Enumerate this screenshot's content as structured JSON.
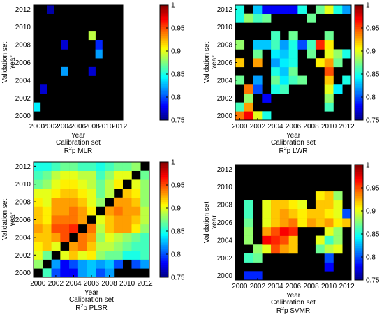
{
  "chart_data": [
    {
      "type": "heatmap",
      "subtitle": "MLR",
      "caption_prefix": "R",
      "caption_sup": "2",
      "caption_sub": "p",
      "xlabel": "Year",
      "xlabel2": "Calibration set",
      "ylabel": "Validation set",
      "ylabel2": "Year",
      "x_years": [
        2000,
        2001,
        2002,
        2003,
        2004,
        2005,
        2006,
        2007,
        2008,
        2009,
        2010,
        2011,
        2012
      ],
      "y_years": [
        2000,
        2001,
        2002,
        2003,
        2004,
        2005,
        2006,
        2007,
        2008,
        2009,
        2010,
        2011,
        2012
      ],
      "x_ticks": [
        "2000",
        "2002",
        "2004",
        "2006",
        "2008",
        "2010",
        "2012"
      ],
      "y_ticks": [
        "2000",
        "2002",
        "2004",
        "2006",
        "2008",
        "2010",
        "2012"
      ],
      "colorbar_ticks": [
        "0.75",
        "0.8",
        "0.85",
        "0.9",
        "0.95",
        "1"
      ],
      "clim": [
        0.75,
        1
      ],
      "values": [
        [
          0,
          0,
          0,
          0,
          0,
          0,
          0,
          0,
          0,
          0,
          0,
          0,
          0
        ],
        [
          0.84,
          0,
          0,
          0,
          0,
          0,
          0,
          0,
          0,
          0,
          0,
          0,
          0
        ],
        [
          0,
          0,
          0,
          0,
          0,
          0,
          0,
          0,
          0,
          0,
          0,
          0,
          0
        ],
        [
          0,
          0.77,
          0,
          0,
          0,
          0,
          0,
          0,
          0,
          0,
          0,
          0,
          0
        ],
        [
          0,
          0,
          0,
          0,
          0,
          0,
          0,
          0,
          0,
          0,
          0,
          0,
          0
        ],
        [
          0,
          0,
          0,
          0,
          0.82,
          0,
          0,
          0,
          0.77,
          0,
          0,
          0,
          0
        ],
        [
          0,
          0,
          0,
          0,
          0,
          0,
          0,
          0,
          0,
          0,
          0,
          0,
          0
        ],
        [
          0,
          0,
          0,
          0,
          0,
          0,
          0,
          0,
          0,
          0.82,
          0,
          0,
          0
        ],
        [
          0,
          0,
          0,
          0,
          0.77,
          0,
          0,
          0,
          0,
          0.79,
          0,
          0,
          0
        ],
        [
          0,
          0,
          0,
          0,
          0,
          0,
          0,
          0,
          0.89,
          0,
          0,
          0,
          0
        ],
        [
          0,
          0,
          0,
          0,
          0,
          0,
          0,
          0,
          0,
          0,
          0,
          0,
          0
        ],
        [
          0,
          0,
          0,
          0,
          0,
          0,
          0,
          0,
          0,
          0,
          0,
          0,
          0
        ],
        [
          0,
          0,
          0.76,
          0,
          0,
          0,
          0,
          0,
          0,
          0,
          0,
          0,
          0
        ]
      ]
    },
    {
      "type": "heatmap",
      "subtitle": "LWR",
      "caption_prefix": "R",
      "caption_sup": "2",
      "caption_sub": "p",
      "xlabel": "Year",
      "xlabel2": "Calibration set",
      "ylabel": "Validation set",
      "ylabel2": "Year",
      "x_years": [
        2000,
        2001,
        2002,
        2003,
        2004,
        2005,
        2006,
        2007,
        2008,
        2009,
        2010,
        2011,
        2012
      ],
      "y_years": [
        2000,
        2001,
        2002,
        2003,
        2004,
        2005,
        2006,
        2007,
        2008,
        2009,
        2010,
        2011,
        2012
      ],
      "x_ticks": [
        "2000",
        "2002",
        "2004",
        "2006",
        "2008",
        "2010",
        "2012"
      ],
      "y_ticks": [
        "2000",
        "2002",
        "2004",
        "2006",
        "2008",
        "2010",
        "2012"
      ],
      "colorbar_ticks": [
        "0.75",
        "0.8",
        "0.85",
        "0.9",
        "0.95",
        "1"
      ],
      "clim": [
        0.75,
        1
      ],
      "values": [
        [
          0.94,
          0.97,
          0.9,
          0.85,
          0,
          0,
          0,
          0,
          0,
          0,
          0,
          0,
          0
        ],
        [
          0.86,
          0.93,
          0,
          0,
          0,
          0,
          0,
          0,
          0,
          0,
          0.86,
          0,
          0
        ],
        [
          0,
          0.88,
          0,
          0.78,
          0,
          0,
          0,
          0,
          0,
          0,
          0.88,
          0,
          0
        ],
        [
          0,
          0.94,
          0.8,
          0,
          0.85,
          0.86,
          0,
          0,
          0,
          0,
          0.9,
          0.84,
          0
        ],
        [
          0.87,
          0,
          0.82,
          0,
          0.87,
          0.84,
          0.86,
          0.87,
          0,
          0,
          0.92,
          0,
          0.85
        ],
        [
          0,
          0,
          0,
          0,
          0.85,
          0.83,
          0.87,
          0,
          0,
          0,
          0.95,
          0,
          0
        ],
        [
          0.92,
          0,
          0.93,
          0,
          0.82,
          0.84,
          0.85,
          0,
          0,
          0.91,
          0.93,
          0.87,
          0
        ],
        [
          0,
          0,
          0.87,
          0,
          0.84,
          0.83,
          0.85,
          0,
          0.87,
          0,
          0.9,
          0.88,
          0.85
        ],
        [
          0.88,
          0,
          0.83,
          0.83,
          0.86,
          0.82,
          0.85,
          0.8,
          0.86,
          0.96,
          0.91,
          0,
          0
        ],
        [
          0,
          0,
          0,
          0,
          0.86,
          0,
          0.87,
          0,
          0,
          0,
          0.87,
          0,
          0
        ],
        [
          0,
          0,
          0,
          0,
          0,
          0,
          0,
          0,
          0,
          0,
          0,
          0,
          0
        ],
        [
          0.85,
          0.88,
          0.86,
          0.87,
          0,
          0,
          0,
          0,
          0.87,
          0,
          0,
          0,
          0
        ],
        [
          0.85,
          0,
          0.83,
          0.78,
          0.78,
          0.78,
          0.78,
          0.85,
          0,
          0.87,
          0.9,
          0.85,
          0.82
        ]
      ]
    },
    {
      "type": "heatmap",
      "subtitle": "PLSR",
      "caption_prefix": "R",
      "caption_sup": "2",
      "caption_sub": "p",
      "xlabel": "Year",
      "xlabel2": "Calibration set",
      "ylabel": "Validation set",
      "ylabel2": "Year",
      "x_years": [
        2000,
        2001,
        2002,
        2003,
        2004,
        2005,
        2006,
        2007,
        2008,
        2009,
        2010,
        2011,
        2012
      ],
      "y_years": [
        2000,
        2001,
        2002,
        2003,
        2004,
        2005,
        2006,
        2007,
        2008,
        2009,
        2010,
        2011,
        2012
      ],
      "x_ticks": [
        "2000",
        "2002",
        "2004",
        "2006",
        "2008",
        "2010",
        "2012"
      ],
      "y_ticks": [
        "2000",
        "2002",
        "2004",
        "2006",
        "2008",
        "2010",
        "2012"
      ],
      "colorbar_ticks": [
        "0.75",
        "0.8",
        "0.85",
        "0.9",
        "0.95",
        "1"
      ],
      "clim": [
        0.75,
        1
      ],
      "values": [
        [
          0,
          0.86,
          0.8,
          0.78,
          0.78,
          0.82,
          0.83,
          0.8,
          0.82,
          0,
          0,
          0,
          0
        ],
        [
          0.88,
          0,
          0.82,
          0.78,
          0.8,
          0.82,
          0.83,
          0.82,
          0.83,
          0.8,
          0,
          0.8,
          0.82
        ],
        [
          0.9,
          0.87,
          0,
          0.9,
          0.92,
          0.9,
          0.91,
          0.88,
          0.87,
          0.87,
          0.85,
          0.85,
          0.86
        ],
        [
          0.91,
          0.92,
          0.9,
          0,
          0.93,
          0.94,
          0.92,
          0.89,
          0.89,
          0.88,
          0.87,
          0.86,
          0.86
        ],
        [
          0.92,
          0.92,
          0.93,
          0.95,
          0,
          0.94,
          0.93,
          0.88,
          0.9,
          0.89,
          0.88,
          0.87,
          0.86
        ],
        [
          0.93,
          0.92,
          0.95,
          0.95,
          0.96,
          0,
          0.94,
          0.89,
          0.92,
          0.93,
          0.93,
          0.91,
          0.88
        ],
        [
          0.92,
          0.91,
          0.94,
          0.94,
          0.94,
          0.93,
          0,
          0.9,
          0.92,
          0.93,
          0.93,
          0.92,
          0.89
        ],
        [
          0.92,
          0.91,
          0.93,
          0.93,
          0.94,
          0.93,
          0.91,
          0,
          0.93,
          0.94,
          0.93,
          0.93,
          0.89
        ],
        [
          0.91,
          0.9,
          0.93,
          0.93,
          0.93,
          0.92,
          0.9,
          0.88,
          0,
          0.93,
          0.93,
          0.92,
          0.88
        ],
        [
          0.9,
          0.9,
          0.91,
          0.92,
          0.92,
          0.91,
          0.9,
          0.87,
          0.89,
          0,
          0.92,
          0.91,
          0.88
        ],
        [
          0.87,
          0.88,
          0.9,
          0.91,
          0.91,
          0.9,
          0.89,
          0.87,
          0.89,
          0.91,
          0,
          0.9,
          0.88
        ],
        [
          0.86,
          0.87,
          0.89,
          0.9,
          0.9,
          0.89,
          0.89,
          0.86,
          0.88,
          0.9,
          0.9,
          0,
          0.87
        ],
        [
          0.85,
          0.85,
          0.86,
          0.87,
          0.87,
          0.86,
          0.86,
          0.85,
          0.86,
          0.87,
          0.87,
          0.88,
          0
        ]
      ]
    },
    {
      "type": "heatmap",
      "subtitle": "SVMR",
      "caption_prefix": "R",
      "caption_sup": "2",
      "caption_sub": "p",
      "xlabel": "Year",
      "xlabel2": "Calibration set",
      "ylabel": "Validation set",
      "ylabel2": "Year",
      "x_years": [
        2000,
        2001,
        2002,
        2003,
        2004,
        2005,
        2006,
        2007,
        2008,
        2009,
        2010,
        2011,
        2012
      ],
      "y_years": [
        2000,
        2001,
        2002,
        2003,
        2004,
        2005,
        2006,
        2007,
        2008,
        2009,
        2010,
        2011,
        2012
      ],
      "x_ticks": [
        "2000",
        "2002",
        "2004",
        "2006",
        "2008",
        "2010",
        "2012"
      ],
      "y_ticks": [
        "2000",
        "2002",
        "2004",
        "2006",
        "2008",
        "2010",
        "2012"
      ],
      "colorbar_ticks": [
        "0.75",
        "0.8",
        "0.85",
        "0.9",
        "0.95",
        "1"
      ],
      "clim": [
        0.75,
        1
      ],
      "values": [
        [
          0,
          0.79,
          0.79,
          0,
          0,
          0,
          0,
          0,
          0,
          0,
          0,
          0,
          0
        ],
        [
          0,
          0,
          0,
          0,
          0,
          0,
          0,
          0,
          0,
          0,
          0.78,
          0,
          0
        ],
        [
          0,
          0.86,
          0.87,
          0,
          0,
          0,
          0,
          0,
          0,
          0,
          0.8,
          0,
          0
        ],
        [
          0,
          0,
          0.88,
          0.9,
          0.95,
          0.93,
          0.92,
          0,
          0,
          0.87,
          0.89,
          0.9,
          0
        ],
        [
          0,
          0.88,
          0,
          0.97,
          0.96,
          0.95,
          0.92,
          0,
          0,
          0.9,
          0.86,
          0.88,
          0
        ],
        [
          0,
          0.88,
          0,
          0.93,
          0.95,
          0.97,
          0.96,
          0,
          0,
          0,
          0.9,
          0.88,
          0
        ],
        [
          0,
          0.87,
          0,
          0.9,
          0.92,
          0.93,
          0.94,
          0.91,
          0.93,
          0.92,
          0.93,
          0.91,
          0.92
        ],
        [
          0,
          0.86,
          0,
          0.9,
          0.92,
          0.93,
          0.92,
          0.91,
          0.92,
          0.92,
          0.91,
          0.9,
          0.8
        ],
        [
          0,
          0.86,
          0,
          0.9,
          0.92,
          0.92,
          0.91,
          0.9,
          0,
          0.92,
          0.92,
          0.9,
          0
        ],
        [
          0,
          0,
          0,
          0,
          0,
          0,
          0,
          0,
          0,
          0.91,
          0.92,
          0.88,
          0
        ],
        [
          0,
          0,
          0,
          0,
          0,
          0,
          0,
          0,
          0,
          0,
          0,
          0,
          0
        ],
        [
          0,
          0,
          0,
          0,
          0,
          0,
          0,
          0,
          0,
          0,
          0,
          0,
          0
        ],
        [
          0,
          0,
          0,
          0,
          0,
          0,
          0,
          0,
          0,
          0,
          0,
          0,
          0
        ]
      ]
    }
  ]
}
